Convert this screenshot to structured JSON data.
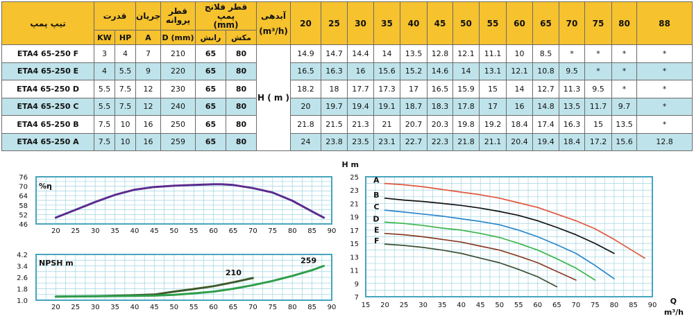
{
  "table": {
    "header": {
      "model": "تیپ پمپ",
      "power": "قدرت",
      "current": "جریان",
      "impeller": "قطر\nپروانه",
      "flange": "قطر فلانج پمپ\n(mm)",
      "flow": "آبدهی",
      "flow_unit": "(m³/h)",
      "kw": "KW",
      "hp": "HP",
      "amp": "A",
      "dmm": "D (mm)",
      "discharge": "رانش",
      "suction": "مکش",
      "head_unit": "H ( m )",
      "flows": [
        "20",
        "25",
        "30",
        "35",
        "40",
        "45",
        "50",
        "55",
        "60",
        "65",
        "70",
        "75",
        "80",
        "88"
      ]
    },
    "rows": [
      {
        "model": "ETA4 65-250 F",
        "kw": "3",
        "hp": "4",
        "a": "7",
        "d": "210",
        "dis": "65",
        "suc": "80",
        "h": [
          "14.9",
          "14.7",
          "14.4",
          "14",
          "13.5",
          "12.8",
          "12.1",
          "11.1",
          "10",
          "8.5",
          "*",
          "*",
          "*",
          "*"
        ]
      },
      {
        "model": "ETA4 65-250 E",
        "kw": "4",
        "hp": "5.5",
        "a": "9",
        "d": "220",
        "dis": "65",
        "suc": "80",
        "h": [
          "16.5",
          "16.3",
          "16",
          "15.6",
          "15.2",
          "14.6",
          "14",
          "13.1",
          "12.1",
          "10.8",
          "9.5",
          "*",
          "*",
          "*"
        ]
      },
      {
        "model": "ETA4 65-250 D",
        "kw": "5.5",
        "hp": "7.5",
        "a": "12",
        "d": "230",
        "dis": "65",
        "suc": "80",
        "h": [
          "18.2",
          "18",
          "17.7",
          "17.3",
          "17",
          "16.5",
          "15.9",
          "15",
          "14",
          "12.7",
          "11.3",
          "9.5",
          "*",
          "*"
        ]
      },
      {
        "model": "ETA4 65-250 C",
        "kw": "5.5",
        "hp": "7.5",
        "a": "12",
        "d": "240",
        "dis": "65",
        "suc": "80",
        "h": [
          "20",
          "19.7",
          "19.4",
          "19.1",
          "18.7",
          "18.3",
          "17.8",
          "17",
          "16",
          "14.8",
          "13.5",
          "11.7",
          "9.7",
          "*"
        ]
      },
      {
        "model": "ETA4 65-250 B",
        "kw": "7.5",
        "hp": "10",
        "a": "16",
        "d": "250",
        "dis": "65",
        "suc": "80",
        "h": [
          "21.8",
          "21.5",
          "21.3",
          "21",
          "20.7",
          "20.3",
          "19.8",
          "19.2",
          "18.4",
          "17.4",
          "16.3",
          "15",
          "13.5",
          "*"
        ]
      },
      {
        "model": "ETA4 65-250 A",
        "kw": "7.5",
        "hp": "10",
        "a": "16",
        "d": "259",
        "dis": "65",
        "suc": "80",
        "h": [
          "24",
          "23.8",
          "23.5",
          "23.1",
          "22.7",
          "22.3",
          "21.8",
          "21.1",
          "20.4",
          "19.4",
          "18.4",
          "17.2",
          "15.6",
          "12.8"
        ]
      }
    ]
  },
  "chart_data": [
    {
      "type": "line",
      "title": "%η",
      "xlim": [
        15,
        90
      ],
      "ylim": [
        46,
        76
      ],
      "xticks": [
        20,
        25,
        30,
        35,
        40,
        45,
        50,
        55,
        60,
        65,
        70,
        75,
        80,
        85,
        90
      ],
      "yticks": [
        46,
        52,
        58,
        64,
        70,
        76
      ],
      "grid": true,
      "color": "#5b2c8f",
      "series": [
        {
          "x": [
            20,
            25,
            30,
            35,
            40,
            45,
            50,
            55,
            60,
            62,
            65,
            70,
            75,
            80,
            85,
            88
          ],
          "values": [
            50,
            55,
            60,
            64.5,
            67.8,
            69.5,
            70.3,
            70.8,
            71.3,
            71.3,
            70.8,
            68.8,
            66,
            60.8,
            54,
            50
          ]
        }
      ]
    },
    {
      "type": "line",
      "title": "NPSH m",
      "xlim": [
        15,
        90
      ],
      "ylim": [
        1.0,
        4.2
      ],
      "xticks": [
        20,
        25,
        30,
        35,
        40,
        45,
        50,
        55,
        60,
        65,
        70,
        75,
        80,
        85,
        90
      ],
      "yticks": [
        "1.0",
        "1.8",
        "2.6",
        "3.4",
        "4.2"
      ],
      "grid": true,
      "series": [
        {
          "name": "210",
          "color": "#3d5a2a",
          "x": [
            20,
            30,
            40,
            45,
            50,
            55,
            60,
            65,
            70
          ],
          "values": [
            1.25,
            1.28,
            1.35,
            1.4,
            1.6,
            1.78,
            1.98,
            2.25,
            2.55
          ]
        },
        {
          "name": "259",
          "color": "#2e9e4a",
          "x": [
            20,
            30,
            40,
            45,
            50,
            55,
            60,
            65,
            70,
            75,
            80,
            85,
            88
          ],
          "values": [
            1.25,
            1.27,
            1.3,
            1.32,
            1.38,
            1.48,
            1.6,
            1.8,
            2.05,
            2.35,
            2.7,
            3.1,
            3.4
          ]
        }
      ]
    },
    {
      "type": "line",
      "xlabel": "Q\nm³/h",
      "ylabel": "H m",
      "xlim": [
        15,
        90
      ],
      "ylim": [
        7,
        25
      ],
      "xticks": [
        15,
        20,
        25,
        30,
        35,
        40,
        45,
        50,
        55,
        60,
        65,
        70,
        75,
        80,
        85,
        90
      ],
      "yticks": [
        7,
        9,
        11,
        13,
        15,
        17,
        19,
        21,
        23,
        25
      ],
      "grid": true,
      "series": [
        {
          "name": "A",
          "color": "#e0553a",
          "x": [
            20,
            25,
            30,
            35,
            40,
            45,
            50,
            55,
            60,
            65,
            70,
            75,
            80,
            88
          ],
          "values": [
            24,
            23.8,
            23.5,
            23.1,
            22.7,
            22.3,
            21.8,
            21.1,
            20.4,
            19.4,
            18.4,
            17.2,
            15.6,
            12.8
          ]
        },
        {
          "name": "B",
          "color": "#111111",
          "x": [
            20,
            25,
            30,
            35,
            40,
            45,
            50,
            55,
            60,
            65,
            70,
            75,
            80
          ],
          "values": [
            21.8,
            21.5,
            21.3,
            21,
            20.7,
            20.3,
            19.8,
            19.2,
            18.4,
            17.4,
            16.3,
            15,
            13.5
          ]
        },
        {
          "name": "C",
          "color": "#2a86c9",
          "x": [
            20,
            25,
            30,
            35,
            40,
            45,
            50,
            55,
            60,
            65,
            70,
            75,
            80
          ],
          "values": [
            20,
            19.7,
            19.4,
            19.1,
            18.7,
            18.3,
            17.8,
            17,
            16,
            14.8,
            13.5,
            11.7,
            9.7
          ]
        },
        {
          "name": "D",
          "color": "#3bb54a",
          "x": [
            20,
            25,
            30,
            35,
            40,
            45,
            50,
            55,
            60,
            65,
            70,
            75
          ],
          "values": [
            18.2,
            18,
            17.7,
            17.3,
            17,
            16.5,
            15.9,
            15,
            14,
            12.7,
            11.3,
            9.5
          ]
        },
        {
          "name": "E",
          "color": "#8a3b22",
          "x": [
            20,
            25,
            30,
            35,
            40,
            45,
            50,
            55,
            60,
            65,
            70
          ],
          "values": [
            16.5,
            16.3,
            16,
            15.6,
            15.2,
            14.6,
            14,
            13.1,
            12.1,
            10.8,
            9.5
          ]
        },
        {
          "name": "F",
          "color": "#3d4f33",
          "x": [
            20,
            25,
            30,
            35,
            40,
            45,
            50,
            55,
            60,
            65
          ],
          "values": [
            14.9,
            14.7,
            14.4,
            14,
            13.5,
            12.8,
            12.1,
            11.1,
            10,
            8.5
          ]
        }
      ]
    }
  ]
}
